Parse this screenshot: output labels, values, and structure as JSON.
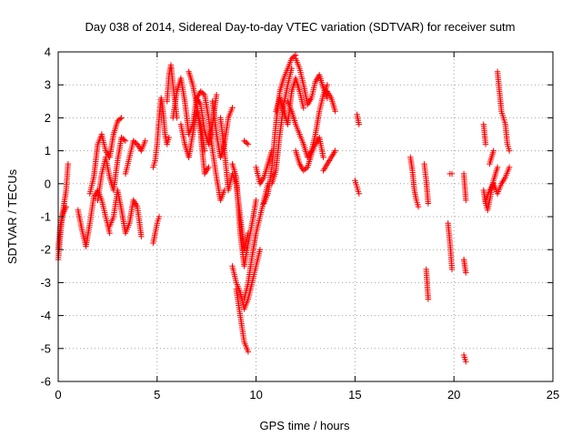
{
  "chart_data": {
    "type": "scatter",
    "title": "Day 038 of 2014, Sidereal Day-to-day VTEC variation (SDTVAR) for receiver sutm",
    "xlabel": "GPS time / hours",
    "ylabel": "SDTVAR / TECUs",
    "xlim": [
      0,
      25
    ],
    "ylim": [
      -6,
      4
    ],
    "xticks": [
      0,
      5,
      10,
      15,
      20,
      25
    ],
    "yticks": [
      -6,
      -5,
      -4,
      -3,
      -2,
      -1,
      0,
      1,
      2,
      3,
      4
    ],
    "grid": true,
    "marker": "+",
    "colors": {
      "series": "#ff0000",
      "grid": "#a0a0a0",
      "axis": "#000000"
    },
    "tracks": [
      {
        "x": [
          0.0,
          0.1,
          0.2,
          0.3,
          0.4,
          0.5
        ],
        "y": [
          -2.3,
          -1.6,
          -1.0,
          -0.6,
          -0.2,
          0.6
        ]
      },
      {
        "x": [
          0.0,
          0.1,
          0.25,
          0.4
        ],
        "y": [
          -2.0,
          -1.3,
          -0.9,
          -0.7
        ]
      },
      {
        "x": [
          1.0,
          1.2,
          1.4,
          1.6,
          1.8,
          2.0,
          2.2,
          2.4,
          2.6
        ],
        "y": [
          -0.8,
          -1.4,
          -1.9,
          -1.2,
          -0.4,
          -0.2,
          -0.5,
          -1.0,
          -1.5
        ]
      },
      {
        "x": [
          1.6,
          1.8,
          2.0,
          2.2,
          2.4,
          2.6,
          2.8,
          3.0,
          3.2
        ],
        "y": [
          -0.3,
          0.2,
          1.2,
          1.5,
          1.0,
          0.8,
          1.5,
          1.9,
          2.0
        ]
      },
      {
        "x": [
          2.0,
          2.2,
          2.4,
          2.6,
          2.8,
          3.0,
          3.2,
          3.4
        ],
        "y": [
          -0.5,
          0.3,
          0.8,
          0.2,
          -0.2,
          0.7,
          1.4,
          1.3
        ]
      },
      {
        "x": [
          2.6,
          2.8,
          3.0,
          3.2,
          3.4,
          3.6,
          3.8,
          4.0,
          4.2
        ],
        "y": [
          -1.3,
          -1.0,
          -0.2,
          -0.8,
          -1.5,
          -1.2,
          -0.5,
          -0.7,
          -1.6
        ]
      },
      {
        "x": [
          3.4,
          3.6,
          3.8,
          4.0,
          4.2,
          4.4
        ],
        "y": [
          0.3,
          0.8,
          1.3,
          1.2,
          1.0,
          1.3
        ]
      },
      {
        "x": [
          4.8,
          4.9,
          5.0,
          5.1
        ],
        "y": [
          -1.8,
          -1.5,
          -1.2,
          -1.0
        ]
      },
      {
        "x": [
          4.8,
          4.9,
          5.0,
          5.1,
          5.2,
          5.3,
          5.4,
          5.5,
          5.6
        ],
        "y": [
          0.5,
          0.7,
          1.2,
          2.0,
          2.6,
          2.2,
          1.5,
          1.2,
          1.4
        ]
      },
      {
        "x": [
          5.5,
          5.6,
          5.7,
          5.8,
          5.9,
          6.0
        ],
        "y": [
          2.5,
          3.3,
          3.6,
          3.0,
          2.5,
          2.0
        ]
      },
      {
        "x": [
          5.8,
          6.0,
          6.2,
          6.4,
          6.6,
          6.8,
          7.0,
          7.2,
          7.4,
          7.6,
          7.8,
          8.0
        ],
        "y": [
          2.0,
          2.8,
          3.2,
          2.5,
          1.5,
          1.8,
          2.6,
          2.4,
          1.6,
          1.2,
          1.8,
          2.7
        ]
      },
      {
        "x": [
          6.2,
          6.4,
          6.6,
          6.8,
          7.0,
          7.2,
          7.4
        ],
        "y": [
          1.8,
          1.2,
          0.8,
          1.5,
          2.2,
          1.8,
          1.0
        ]
      },
      {
        "x": [
          6.6,
          6.8,
          7.0,
          7.2,
          7.4,
          7.6
        ],
        "y": [
          3.4,
          3.0,
          2.4,
          1.5,
          0.3,
          0.5
        ]
      },
      {
        "x": [
          7.0,
          7.2,
          7.4,
          7.6,
          7.8,
          8.0,
          8.2,
          8.4
        ],
        "y": [
          2.6,
          2.8,
          2.7,
          2.0,
          1.0,
          0.2,
          -0.5,
          -0.2
        ]
      },
      {
        "x": [
          7.8,
          8.0,
          8.2,
          8.4,
          8.6,
          8.8
        ],
        "y": [
          2.5,
          1.5,
          0.8,
          1.2,
          2.0,
          2.3
        ]
      },
      {
        "x": [
          8.2,
          8.4,
          8.6,
          8.8,
          9.0,
          9.2,
          9.4,
          9.6
        ],
        "y": [
          2.0,
          1.0,
          -0.2,
          0.3,
          0.0,
          -1.0,
          -2.0,
          -1.5
        ]
      },
      {
        "x": [
          8.8,
          9.0,
          9.2,
          9.4,
          9.6,
          9.8,
          10.0
        ],
        "y": [
          0.6,
          0.2,
          -1.5,
          -2.5,
          -1.8,
          -1.2,
          -0.5
        ]
      },
      {
        "x": [
          8.8,
          9.0,
          9.2,
          9.4,
          9.6,
          9.8,
          10.0,
          10.2
        ],
        "y": [
          -2.5,
          -3.0,
          -3.3,
          -3.8,
          -3.5,
          -3.0,
          -2.5,
          -2.0
        ]
      },
      {
        "x": [
          9.0,
          9.2,
          9.4,
          9.6
        ],
        "y": [
          -3.2,
          -4.0,
          -4.8,
          -5.1
        ]
      },
      {
        "x": [
          9.4,
          9.6,
          9.8,
          10.0,
          10.2,
          10.4,
          10.6
        ],
        "y": [
          -3.5,
          -3.0,
          -2.2,
          -1.5,
          -1.0,
          -0.5,
          0.0
        ]
      },
      {
        "x": [
          9.4,
          9.6
        ],
        "y": [
          1.3,
          1.2
        ]
      },
      {
        "x": [
          10.0,
          10.2,
          10.4,
          10.6,
          10.8
        ],
        "y": [
          0.5,
          0.0,
          0.2,
          0.6,
          1.0
        ]
      },
      {
        "x": [
          10.4,
          10.6,
          10.8,
          11.0,
          11.2,
          11.4,
          11.6,
          11.8,
          12.0
        ],
        "y": [
          -0.6,
          -0.3,
          0.5,
          1.8,
          2.8,
          3.2,
          3.5,
          3.8,
          3.9
        ]
      },
      {
        "x": [
          10.8,
          11.0,
          11.2,
          11.4,
          11.6,
          11.8
        ],
        "y": [
          0.0,
          0.4,
          1.5,
          2.4,
          3.0,
          3.5
        ]
      },
      {
        "x": [
          11.0,
          11.2,
          11.4,
          11.6,
          11.8,
          12.0,
          12.2,
          12.4
        ],
        "y": [
          2.2,
          2.6,
          2.2,
          1.8,
          2.8,
          3.2,
          2.8,
          2.3
        ]
      },
      {
        "x": [
          12.0,
          12.2,
          12.4,
          12.6,
          12.8,
          13.0,
          13.2,
          13.4,
          13.6
        ],
        "y": [
          3.8,
          3.5,
          3.0,
          2.4,
          2.6,
          3.1,
          3.3,
          2.9,
          2.6
        ]
      },
      {
        "x": [
          11.6,
          11.8,
          12.0,
          12.2,
          12.4,
          12.6,
          12.8,
          13.0,
          13.2,
          13.4,
          13.6
        ],
        "y": [
          2.5,
          2.2,
          1.8,
          1.5,
          1.2,
          0.8,
          1.0,
          1.5,
          2.2,
          2.7,
          3.0
        ]
      },
      {
        "x": [
          12.0,
          12.2,
          12.4,
          12.6,
          12.8,
          13.0,
          13.2,
          13.4
        ],
        "y": [
          1.0,
          0.6,
          0.4,
          0.5,
          0.9,
          1.2,
          1.4,
          0.8
        ]
      },
      {
        "x": [
          13.4,
          13.6,
          13.8,
          14.0
        ],
        "y": [
          0.4,
          0.6,
          0.8,
          1.0
        ]
      },
      {
        "x": [
          13.6,
          13.8,
          14.0
        ],
        "y": [
          2.8,
          2.6,
          2.2
        ]
      },
      {
        "x": [
          15.1,
          15.2
        ],
        "y": [
          2.1,
          1.8
        ]
      },
      {
        "x": [
          15.0,
          15.1,
          15.2
        ],
        "y": [
          0.1,
          -0.1,
          -0.3
        ]
      },
      {
        "x": [
          17.8,
          17.9,
          18.0,
          18.1,
          18.2
        ],
        "y": [
          0.8,
          0.4,
          -0.2,
          -0.5,
          -0.7
        ]
      },
      {
        "x": [
          18.5,
          18.6,
          18.7
        ],
        "y": [
          0.6,
          0.1,
          -0.6
        ]
      },
      {
        "x": [
          18.6,
          18.7
        ],
        "y": [
          -2.6,
          -3.5
        ]
      },
      {
        "x": [
          19.7,
          19.8,
          19.9
        ],
        "y": [
          -1.2,
          -1.8,
          -2.6
        ]
      },
      {
        "x": [
          19.8,
          19.9
        ],
        "y": [
          0.3,
          0.3
        ]
      },
      {
        "x": [
          20.5,
          20.6
        ],
        "y": [
          0.3,
          -0.5
        ]
      },
      {
        "x": [
          20.5,
          20.6
        ],
        "y": [
          -2.3,
          -2.7
        ]
      },
      {
        "x": [
          20.5,
          20.6
        ],
        "y": [
          -5.2,
          -5.4
        ]
      },
      {
        "x": [
          21.5,
          21.6,
          21.7,
          21.8,
          22.0,
          22.2
        ],
        "y": [
          -0.2,
          -0.6,
          -0.8,
          -0.5,
          0.1,
          0.5
        ]
      },
      {
        "x": [
          21.6,
          21.8,
          22.0,
          22.2,
          22.4,
          22.6,
          22.8
        ],
        "y": [
          -0.5,
          -0.2,
          0.0,
          -0.3,
          0.0,
          0.2,
          0.5
        ]
      },
      {
        "x": [
          21.5,
          21.6
        ],
        "y": [
          1.8,
          1.2
        ]
      },
      {
        "x": [
          21.8,
          22.0
        ],
        "y": [
          0.6,
          1.0
        ]
      },
      {
        "x": [
          22.2,
          22.3,
          22.4,
          22.5,
          22.6,
          22.7,
          22.8
        ],
        "y": [
          3.4,
          2.8,
          2.2,
          2.0,
          1.8,
          1.2,
          1.0
        ]
      }
    ]
  }
}
